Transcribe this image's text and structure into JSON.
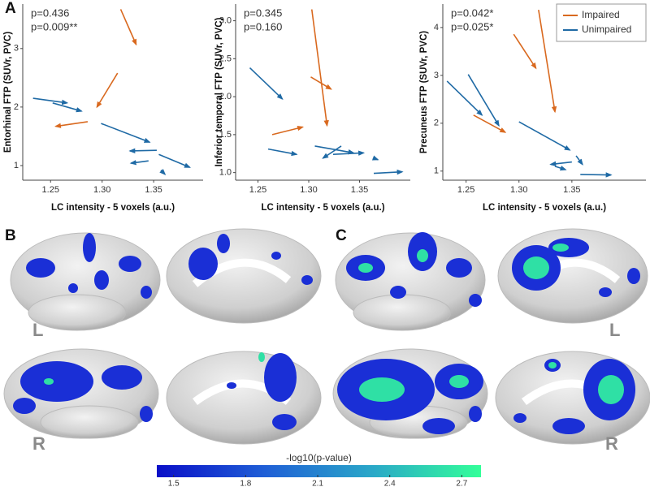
{
  "panel_labels": [
    "A",
    "B",
    "C"
  ],
  "hemisphere_labels": {
    "left": "L",
    "right": "R"
  },
  "chart_data": [
    {
      "type": "segment",
      "xlabel": "LC intensity - 5 voxels (a.u.)",
      "ylabel": "Entorhinal FTP (SUVr, PVC)",
      "xlim": [
        1.223,
        1.398
      ],
      "ylim": [
        0.75,
        3.76
      ],
      "xticks": [
        1.25,
        {
          "value": 1.3,
          "label": "1.30"
        },
        1.35
      ],
      "yticks": [
        1,
        2,
        3
      ],
      "annotations": [
        {
          "text": "p=0.436",
          "color": "#111111"
        },
        {
          "text": "p=0.009**",
          "color": "#1f6aa5"
        }
      ],
      "series": [
        {
          "name": "Impaired",
          "color": "#d9691f",
          "x0": [
            1.318,
            1.315,
            1.286
          ],
          "y0": [
            3.67,
            2.58,
            1.75
          ],
          "x1": [
            1.333,
            1.295,
            1.255
          ],
          "y1": [
            3.07,
            2.0,
            1.67
          ]
        },
        {
          "name": "Unimpaired",
          "color": "#1f6aa5",
          "x0": [
            1.233,
            1.252,
            1.299,
            1.353,
            1.345,
            1.355,
            1.357
          ],
          "y0": [
            2.15,
            2.07,
            1.72,
            1.26,
            1.08,
            1.19,
            0.92
          ],
          "x1": [
            1.266,
            1.28,
            1.346,
            1.327,
            1.328,
            1.385,
            1.361
          ],
          "y1": [
            2.07,
            1.93,
            1.4,
            1.25,
            1.04,
            0.97,
            0.85
          ]
        }
      ]
    },
    {
      "type": "segment",
      "xlabel": "LC intensity - 5 voxels (a.u.)",
      "ylabel": "Inferior temporal FTP (SUVr, PVC)",
      "xlim": [
        1.228,
        1.4
      ],
      "ylim": [
        0.9,
        3.22
      ],
      "xticks": [
        1.25,
        {
          "value": 1.3,
          "label": "1.30"
        },
        1.35
      ],
      "yticks": [
        {
          "value": 1,
          "label": "1.0"
        },
        1.5,
        {
          "value": 2,
          "label": "2.0"
        },
        2.5,
        {
          "value": 3,
          "label": "3.0"
        }
      ],
      "annotations": [
        {
          "text": "p=0.345",
          "color": "#111111"
        },
        {
          "text": "p=0.160",
          "color": "#1f6aa5"
        }
      ],
      "series": [
        {
          "name": "Impaired",
          "color": "#d9691f",
          "x0": [
            1.303,
            1.302,
            1.264
          ],
          "y0": [
            3.15,
            2.26,
            1.5
          ],
          "x1": [
            1.318,
            1.322,
            1.294
          ],
          "y1": [
            1.62,
            2.1,
            1.6
          ]
        },
        {
          "name": "Unimpaired",
          "color": "#1f6aa5",
          "x0": [
            1.242,
            1.26,
            1.306,
            1.332,
            1.324,
            1.364,
            1.364
          ],
          "y0": [
            2.38,
            1.31,
            1.35,
            1.35,
            1.24,
            1.19,
            0.99
          ],
          "x1": [
            1.274,
            1.288,
            1.344,
            1.314,
            1.354,
            1.368,
            1.392
          ],
          "y1": [
            1.97,
            1.24,
            1.26,
            1.19,
            1.26,
            1.17,
            1.01
          ]
        }
      ]
    },
    {
      "type": "segment",
      "xlabel": "LC intensity - 5 voxels (a.u.)",
      "ylabel": "Precuneus FTP (SUVr, PVC)",
      "xlim": [
        1.228,
        1.42
      ],
      "ylim": [
        0.81,
        4.49
      ],
      "xticks": [
        1.25,
        {
          "value": 1.3,
          "label": "1.30"
        },
        1.35
      ],
      "yticks": [
        1,
        2,
        3,
        4
      ],
      "annotations": [
        {
          "text": "p=0.042*",
          "color": "#111111"
        },
        {
          "text": "p=0.025*",
          "color": "#1f6aa5"
        }
      ],
      "legend": "top-right",
      "series": [
        {
          "name": "Impaired",
          "color": "#d9691f",
          "x0": [
            1.3185,
            1.295,
            1.257
          ],
          "y0": [
            4.37,
            3.86,
            2.17
          ],
          "x1": [
            1.334,
            1.316,
            1.287
          ],
          "y1": [
            2.24,
            3.15,
            1.81
          ]
        },
        {
          "name": "Unimpaired",
          "color": "#1f6aa5",
          "x0": [
            1.232,
            1.252,
            1.3,
            1.354,
            1.35,
            1.334,
            1.358
          ],
          "y0": [
            2.88,
            3.02,
            2.03,
            1.32,
            1.19,
            1.1,
            0.93
          ],
          "x1": [
            1.265,
            1.281,
            1.348,
            1.36,
            1.33,
            1.344,
            1.387
          ],
          "y1": [
            2.17,
            1.95,
            1.44,
            1.14,
            1.14,
            1.03,
            0.92
          ]
        }
      ]
    },
    {
      "type": "colorbar",
      "title": "-log10(p-value)",
      "xlim": [
        1.43,
        2.78
      ],
      "xticks": [
        1.5,
        1.8,
        2.1,
        2.4,
        2.7
      ],
      "colors": [
        "#0a0fc8",
        "#1f5fd6",
        "#2aa8c8",
        "#33ff99"
      ]
    }
  ]
}
